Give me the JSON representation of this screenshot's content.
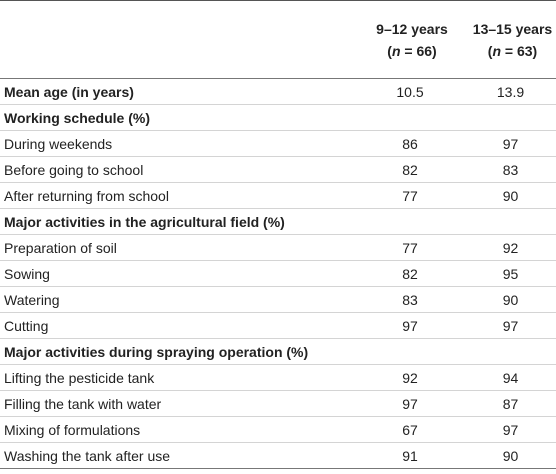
{
  "table": {
    "header": [
      {
        "line1": "9–12 years",
        "line2": [
          "(",
          "n",
          " = 66)"
        ]
      },
      {
        "line1": "13–15 years",
        "line2": [
          "(",
          "n",
          " = 63)"
        ]
      }
    ],
    "rows": [
      {
        "label": "Mean age (in years)",
        "bold": true,
        "values": [
          10.5,
          13.9
        ]
      },
      {
        "label": "Working schedule (%)",
        "bold": true,
        "values": []
      },
      {
        "label": "During weekends",
        "values": [
          86,
          97
        ]
      },
      {
        "label": "Before going to school",
        "values": [
          82,
          83
        ]
      },
      {
        "label": "After returning from school",
        "values": [
          77,
          90
        ]
      },
      {
        "label": "Major activities in the agricultural field (%)",
        "bold": true,
        "values": []
      },
      {
        "label": "Preparation of soil",
        "values": [
          77,
          92
        ]
      },
      {
        "label": "Sowing",
        "values": [
          82,
          95
        ]
      },
      {
        "label": "Watering",
        "values": [
          83,
          90
        ]
      },
      {
        "label": "Cutting",
        "values": [
          97,
          97
        ]
      },
      {
        "label": "Major activities during spraying operation (%)",
        "bold": true,
        "values": []
      },
      {
        "label": "Lifting the pesticide tank",
        "values": [
          92,
          94
        ]
      },
      {
        "label": "Filling the tank with water",
        "values": [
          97,
          87
        ]
      },
      {
        "label": "Mixing of formulations",
        "values": [
          67,
          97
        ]
      },
      {
        "label": "Washing the tank after use",
        "values": [
          91,
          90
        ]
      }
    ]
  }
}
